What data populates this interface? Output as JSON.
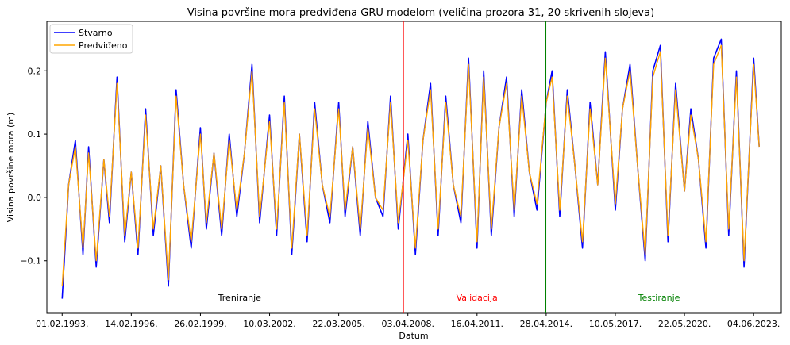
{
  "chart_data": {
    "type": "line",
    "title": "Visina površine mora predviđena GRU modelom (veličina prozora 31, 20 skrivenih slojeva)",
    "xlabel": "Datum",
    "ylabel": "Visina površine mora (m)",
    "x_ticks": [
      "01.02.1993.",
      "14.02.1996.",
      "26.02.1999.",
      "10.03.2002.",
      "22.03.2005.",
      "03.04.2008.",
      "16.04.2011.",
      "28.04.2014.",
      "10.05.2017.",
      "22.05.2020.",
      "04.06.2023."
    ],
    "y_ticks": [
      "−0.1",
      "0.0",
      "0.1",
      "0.2"
    ],
    "y_tick_values": [
      -0.1,
      0.0,
      0.1,
      0.2
    ],
    "xlim": [
      "1992-06-01",
      "2024-08-20"
    ],
    "ylim": [
      -0.183,
      0.278
    ],
    "grid": false,
    "legend_position": "top-left",
    "series": [
      {
        "name": "Stvarno",
        "color": "#0000ff",
        "x": [
          "1993-02-01",
          "1993-05-15",
          "1993-09-01",
          "1994-01-01",
          "1994-04-01",
          "1994-08-01",
          "1994-12-01",
          "1995-03-01",
          "1995-07-01",
          "1995-11-01",
          "1996-02-14",
          "1996-06-01",
          "1996-10-01",
          "1997-02-01",
          "1997-06-01",
          "1997-10-01",
          "1998-02-01",
          "1998-06-01",
          "1998-10-01",
          "1999-02-26",
          "1999-06-01",
          "1999-10-01",
          "2000-02-01",
          "2000-06-01",
          "2000-10-01",
          "2001-02-01",
          "2001-06-01",
          "2001-10-01",
          "2002-03-10",
          "2002-07-01",
          "2002-11-01",
          "2003-03-01",
          "2003-07-01",
          "2003-11-01",
          "2004-03-01",
          "2004-07-01",
          "2004-11-01",
          "2005-03-22",
          "2005-07-01",
          "2005-11-01",
          "2006-03-01",
          "2006-07-01",
          "2006-11-01",
          "2007-03-01",
          "2007-07-01",
          "2007-11-01",
          "2008-04-03",
          "2008-08-01",
          "2008-12-01",
          "2009-04-01",
          "2009-08-01",
          "2009-12-01",
          "2010-04-01",
          "2010-08-01",
          "2010-12-01",
          "2011-04-16",
          "2011-08-01",
          "2011-12-01",
          "2012-04-01",
          "2012-08-01",
          "2012-12-01",
          "2013-04-01",
          "2013-08-01",
          "2013-12-01",
          "2014-04-28",
          "2014-08-01",
          "2014-12-01",
          "2015-04-01",
          "2015-08-01",
          "2015-12-01",
          "2016-04-01",
          "2016-08-01",
          "2016-12-01",
          "2017-05-10",
          "2017-09-01",
          "2018-01-01",
          "2018-05-01",
          "2018-09-01",
          "2019-01-01",
          "2019-05-01",
          "2019-09-01",
          "2020-01-01",
          "2020-05-22",
          "2020-09-01",
          "2021-01-01",
          "2021-05-01",
          "2021-09-01",
          "2022-01-01",
          "2022-05-01",
          "2022-09-01",
          "2023-01-01",
          "2023-06-04",
          "2023-09-01"
        ],
        "values": [
          -0.16,
          0.02,
          0.09,
          -0.09,
          0.08,
          -0.11,
          0.06,
          -0.04,
          0.19,
          -0.07,
          0.04,
          -0.09,
          0.14,
          -0.06,
          0.05,
          -0.14,
          0.17,
          0.02,
          -0.08,
          0.11,
          -0.05,
          0.07,
          -0.06,
          0.1,
          -0.03,
          0.07,
          0.21,
          -0.04,
          0.13,
          -0.06,
          0.16,
          -0.09,
          0.1,
          -0.07,
          0.15,
          0.02,
          -0.04,
          0.15,
          -0.03,
          0.08,
          -0.06,
          0.12,
          0.0,
          -0.03,
          0.16,
          -0.05,
          0.1,
          -0.09,
          0.09,
          0.18,
          -0.06,
          0.16,
          0.02,
          -0.04,
          0.22,
          -0.08,
          0.2,
          -0.06,
          0.11,
          0.19,
          -0.03,
          0.17,
          0.04,
          -0.02,
          0.15,
          0.2,
          -0.03,
          0.17,
          0.05,
          -0.08,
          0.15,
          0.02,
          0.23,
          -0.02,
          0.14,
          0.21,
          0.05,
          -0.1,
          0.2,
          0.24,
          -0.07,
          0.18,
          0.01,
          0.14,
          0.06,
          -0.08,
          0.22,
          0.25,
          -0.06,
          0.2,
          -0.11,
          0.22,
          0.08
        ]
      },
      {
        "name": "Predviđeno",
        "color": "#ffa500",
        "x": [
          "1993-02-01",
          "1993-05-15",
          "1993-09-01",
          "1994-01-01",
          "1994-04-01",
          "1994-08-01",
          "1994-12-01",
          "1995-03-01",
          "1995-07-01",
          "1995-11-01",
          "1996-02-14",
          "1996-06-01",
          "1996-10-01",
          "1997-02-01",
          "1997-06-01",
          "1997-10-01",
          "1998-02-01",
          "1998-06-01",
          "1998-10-01",
          "1999-02-26",
          "1999-06-01",
          "1999-10-01",
          "2000-02-01",
          "2000-06-01",
          "2000-10-01",
          "2001-02-01",
          "2001-06-01",
          "2001-10-01",
          "2002-03-10",
          "2002-07-01",
          "2002-11-01",
          "2003-03-01",
          "2003-07-01",
          "2003-11-01",
          "2004-03-01",
          "2004-07-01",
          "2004-11-01",
          "2005-03-22",
          "2005-07-01",
          "2005-11-01",
          "2006-03-01",
          "2006-07-01",
          "2006-11-01",
          "2007-03-01",
          "2007-07-01",
          "2007-11-01",
          "2008-04-03",
          "2008-08-01",
          "2008-12-01",
          "2009-04-01",
          "2009-08-01",
          "2009-12-01",
          "2010-04-01",
          "2010-08-01",
          "2010-12-01",
          "2011-04-16",
          "2011-08-01",
          "2011-12-01",
          "2012-04-01",
          "2012-08-01",
          "2012-12-01",
          "2013-04-01",
          "2013-08-01",
          "2013-12-01",
          "2014-04-28",
          "2014-08-01",
          "2014-12-01",
          "2015-04-01",
          "2015-08-01",
          "2015-12-01",
          "2016-04-01",
          "2016-08-01",
          "2016-12-01",
          "2017-05-10",
          "2017-09-01",
          "2018-01-01",
          "2018-05-01",
          "2018-09-01",
          "2019-01-01",
          "2019-05-01",
          "2019-09-01",
          "2020-01-01",
          "2020-05-22",
          "2020-09-01",
          "2021-01-01",
          "2021-05-01",
          "2021-09-01",
          "2022-01-01",
          "2022-05-01",
          "2022-09-01",
          "2023-01-01",
          "2023-06-04",
          "2023-09-01"
        ],
        "values": [
          -0.14,
          0.02,
          0.08,
          -0.08,
          0.07,
          -0.1,
          0.06,
          -0.03,
          0.18,
          -0.06,
          0.04,
          -0.08,
          0.13,
          -0.05,
          0.05,
          -0.13,
          0.16,
          0.02,
          -0.07,
          0.1,
          -0.04,
          0.07,
          -0.05,
          0.09,
          -0.02,
          0.07,
          0.2,
          -0.03,
          0.12,
          -0.05,
          0.15,
          -0.08,
          0.1,
          -0.06,
          0.14,
          0.02,
          -0.03,
          0.14,
          -0.02,
          0.08,
          -0.05,
          0.11,
          0.0,
          -0.02,
          0.15,
          -0.04,
          0.09,
          -0.08,
          0.09,
          0.17,
          -0.05,
          0.15,
          0.02,
          -0.03,
          0.21,
          -0.07,
          0.19,
          -0.05,
          0.11,
          0.18,
          -0.02,
          0.16,
          0.04,
          -0.01,
          0.15,
          0.19,
          -0.02,
          0.16,
          0.05,
          -0.07,
          0.14,
          0.02,
          0.22,
          -0.01,
          0.14,
          0.2,
          0.05,
          -0.09,
          0.19,
          0.23,
          -0.06,
          0.17,
          0.01,
          0.13,
          0.06,
          -0.07,
          0.21,
          0.24,
          -0.05,
          0.19,
          -0.1,
          0.21,
          0.08
        ]
      }
    ],
    "vlines": [
      {
        "x": "2008-01-20",
        "color": "#ff0000"
      },
      {
        "x": "2014-04-20",
        "color": "#008000"
      }
    ],
    "annotations": [
      {
        "text": "Treniranje",
        "x": "2000-11-15",
        "color": "#000000"
      },
      {
        "text": "Validacija",
        "x": "2011-04-15",
        "color": "#ff0000"
      },
      {
        "text": "Testiranje",
        "x": "2019-04-10",
        "color": "#008000"
      }
    ]
  }
}
